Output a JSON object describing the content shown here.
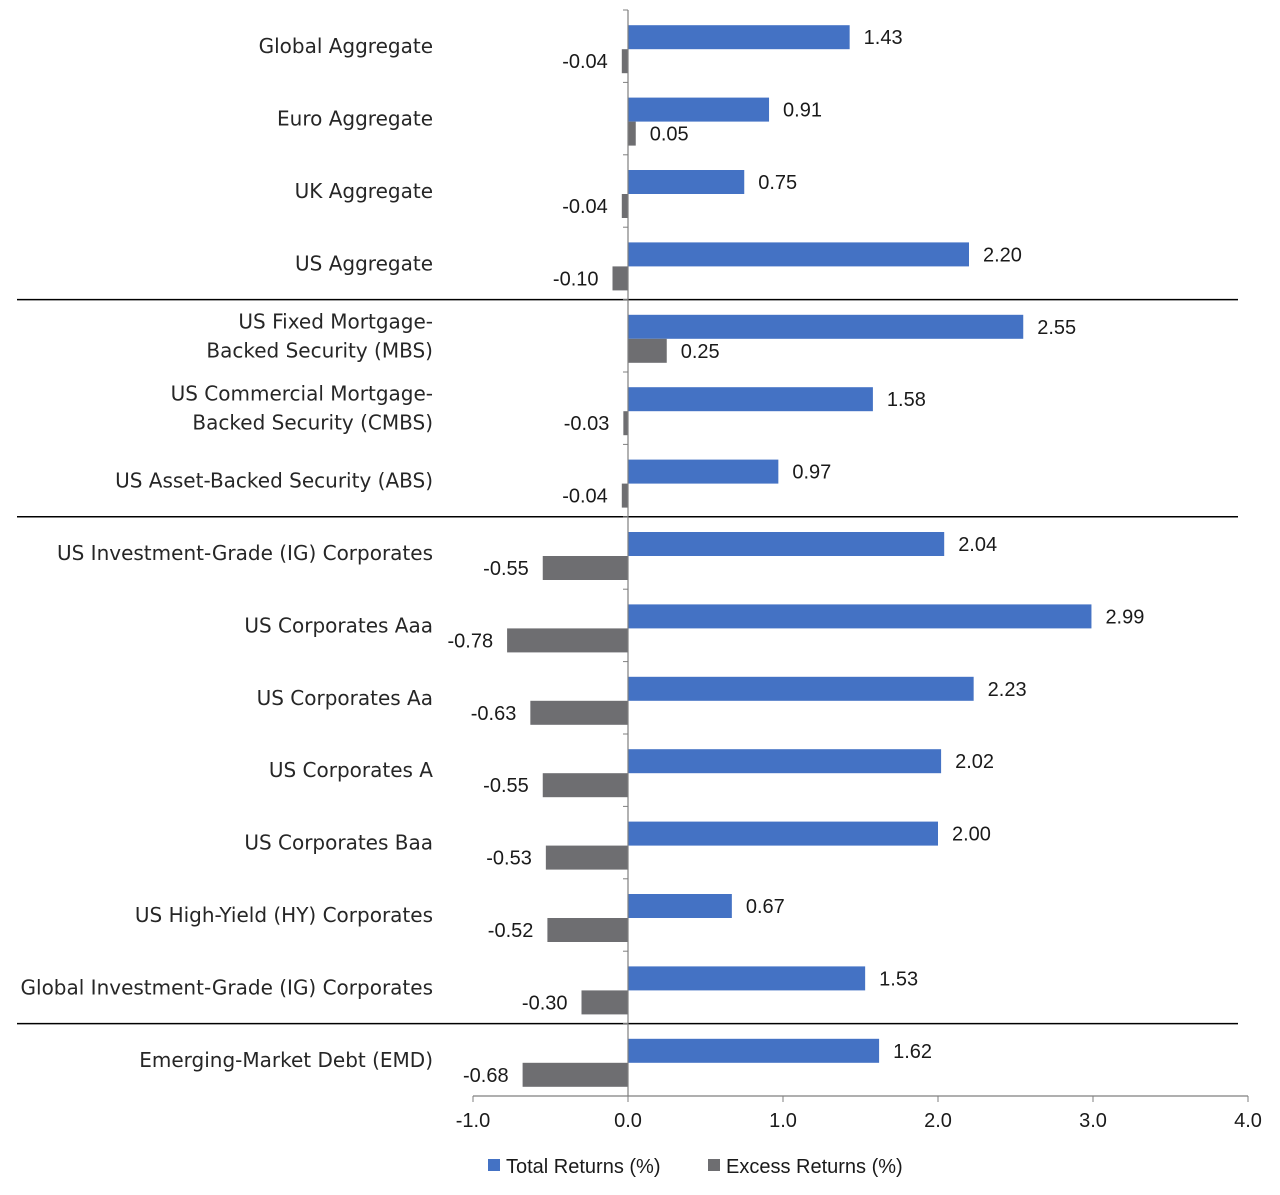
{
  "chart_data": {
    "type": "bar",
    "orientation": "horizontal",
    "title": "",
    "xlabel": "",
    "ylabel": "",
    "xlim": [
      -1.0,
      4.0
    ],
    "x_ticks": [
      "-1.0",
      "0.0",
      "1.0",
      "2.0",
      "3.0",
      "4.0"
    ],
    "x_tick_values": [
      -1.0,
      0.0,
      1.0,
      2.0,
      3.0,
      4.0
    ],
    "grid": false,
    "legend_position": "bottom",
    "categories": [
      [
        "Global Aggregate"
      ],
      [
        "Euro Aggregate"
      ],
      [
        "UK Aggregate"
      ],
      [
        "US Aggregate"
      ],
      [
        "US Fixed Mortgage-",
        "Backed Security (MBS)"
      ],
      [
        "US Commercial Mortgage-",
        "Backed Security (CMBS)"
      ],
      [
        "US Asset-Backed Security (ABS)"
      ],
      [
        "US Investment-Grade (IG) Corporates"
      ],
      [
        "US Corporates Aaa"
      ],
      [
        "US Corporates Aa"
      ],
      [
        "US Corporates A"
      ],
      [
        "US Corporates Baa"
      ],
      [
        "US High-Yield (HY) Corporates"
      ],
      [
        "Global Investment-Grade (IG) Corporates"
      ],
      [
        "Emerging-Market Debt (EMD)"
      ]
    ],
    "group_separators_after": [
      3,
      6,
      13
    ],
    "series": [
      {
        "name": "Total Returns (%)",
        "color": "#4472c4",
        "values": [
          1.43,
          0.91,
          0.75,
          2.2,
          2.55,
          1.58,
          0.97,
          2.04,
          2.99,
          2.23,
          2.02,
          2.0,
          0.67,
          1.53,
          1.62
        ],
        "labels": [
          "1.43",
          "0.91",
          "0.75",
          "2.20",
          "2.55",
          "1.58",
          "0.97",
          "2.04",
          "2.99",
          "2.23",
          "2.02",
          "2.00",
          "0.67",
          "1.53",
          "1.62"
        ]
      },
      {
        "name": "Excess Returns (%)",
        "color": "#6e6e71",
        "values": [
          -0.04,
          0.05,
          -0.04,
          -0.1,
          0.25,
          -0.03,
          -0.04,
          -0.55,
          -0.78,
          -0.63,
          -0.55,
          -0.53,
          -0.52,
          -0.3,
          -0.68
        ],
        "labels": [
          "-0.04",
          "0.05",
          "-0.04",
          "-0.10",
          "0.25",
          "-0.03",
          "-0.04",
          "-0.55",
          "-0.78",
          "-0.63",
          "-0.55",
          "-0.53",
          "-0.52",
          "-0.30",
          "-0.68"
        ]
      }
    ]
  }
}
